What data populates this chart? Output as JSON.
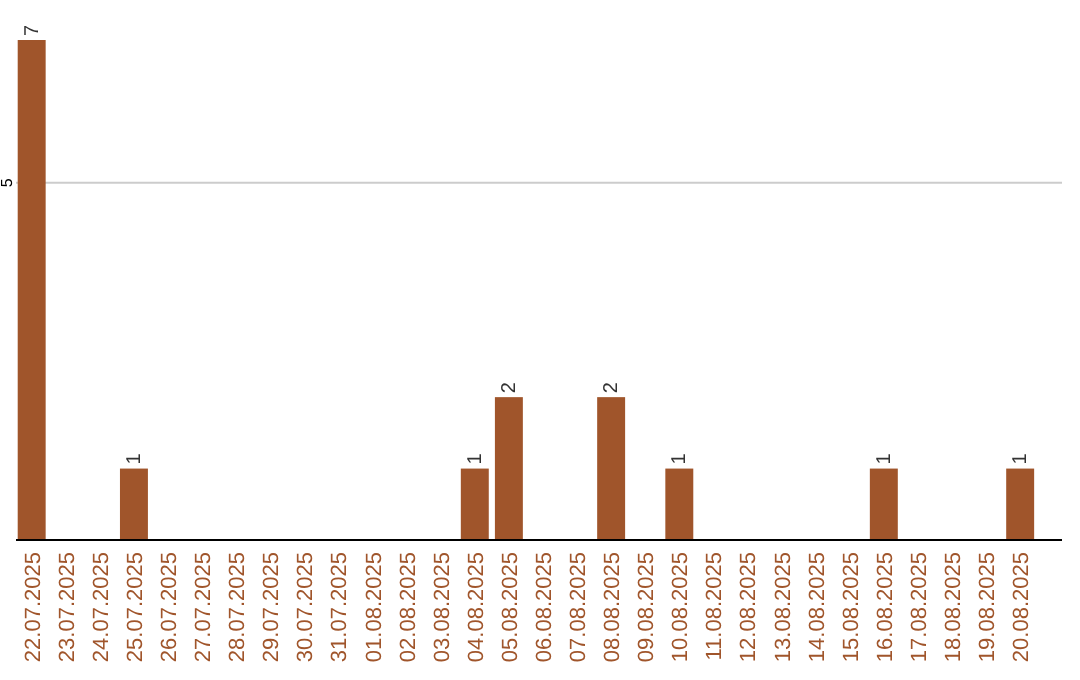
{
  "chart_data": {
    "type": "bar",
    "categories": [
      "22.07.2025",
      "23.07.2025",
      "24.07.2025",
      "25.07.2025",
      "26.07.2025",
      "27.07.2025",
      "28.07.2025",
      "29.07.2025",
      "30.07.2025",
      "31.07.2025",
      "01.08.2025",
      "02.08.2025",
      "03.08.2025",
      "04.08.2025",
      "05.08.2025",
      "06.08.2025",
      "07.08.2025",
      "08.08.2025",
      "09.08.2025",
      "10.08.2025",
      "11.08.2025",
      "12.08.2025",
      "13.08.2025",
      "14.08.2025",
      "15.08.2025",
      "16.08.2025",
      "17.08.2025",
      "18.08.2025",
      "19.08.2025",
      "20.08.2025"
    ],
    "values": [
      7,
      0,
      0,
      1,
      0,
      0,
      0,
      0,
      0,
      0,
      0,
      0,
      0,
      1,
      2,
      0,
      0,
      2,
      0,
      1,
      0,
      0,
      0,
      0,
      0,
      1,
      0,
      0,
      0,
      1
    ],
    "value_labels": [
      "7",
      null,
      null,
      "1",
      null,
      null,
      null,
      null,
      null,
      null,
      null,
      null,
      null,
      "1",
      "2",
      null,
      null,
      "2",
      null,
      "1",
      null,
      null,
      null,
      null,
      null,
      "1",
      null,
      null,
      null,
      "1"
    ],
    "color": "#a0552b",
    "ylim": [
      0,
      7
    ],
    "yticks": [
      5
    ],
    "grid": "y"
  }
}
